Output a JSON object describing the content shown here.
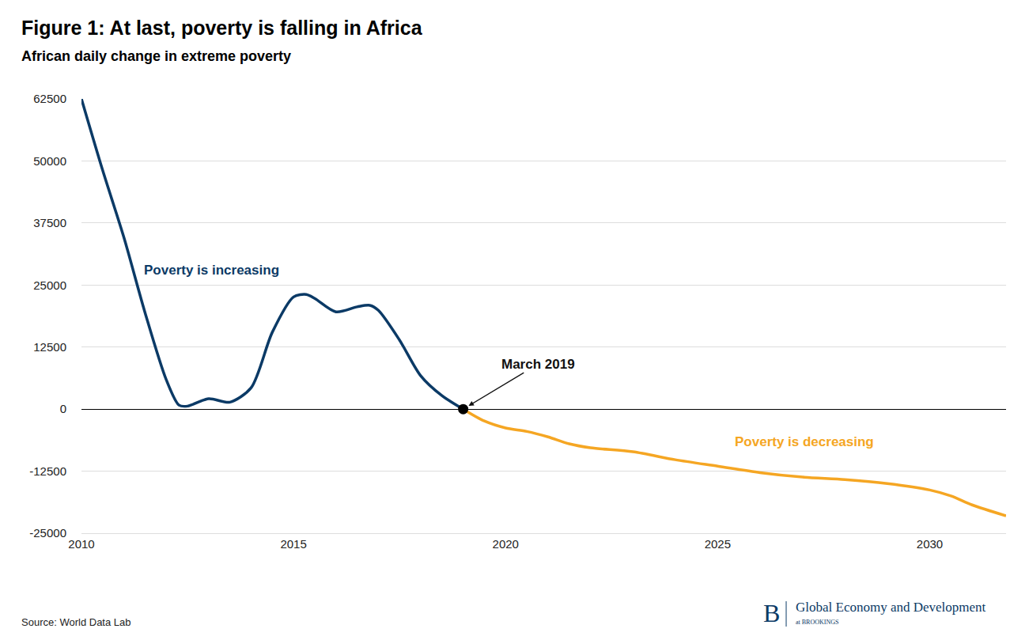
{
  "chart_data": {
    "type": "line",
    "title": "Figure 1: At last, poverty is falling in Africa",
    "subtitle": "African daily change in extreme poverty",
    "source": "Source: World Data Lab",
    "branding": {
      "letter": "B",
      "text": "Global Economy and Development",
      "subtext": "at BROOKINGS"
    },
    "xlim": [
      2010,
      2031.8
    ],
    "xticks": [
      2010,
      2015,
      2020,
      2025,
      2030
    ],
    "ylim": [
      -25000,
      62500
    ],
    "yticks": [
      -25000,
      -12500,
      0,
      12500,
      25000,
      37500,
      50000,
      62500
    ],
    "grid": true,
    "series": [
      {
        "name": "Poverty is increasing",
        "color": "#0b3a66",
        "x": [
          2010,
          2010.5,
          2011,
          2011.5,
          2012,
          2012.3,
          2012.5,
          2013,
          2013.5,
          2014,
          2014.5,
          2015,
          2015.3,
          2015.5,
          2016,
          2016.5,
          2016.8,
          2017,
          2017.5,
          2018,
          2018.5,
          2019
        ],
        "values": [
          62500,
          48100,
          34600,
          19400,
          5900,
          800,
          600,
          2100,
          1400,
          4300,
          15500,
          22600,
          23100,
          22300,
          19600,
          20600,
          20900,
          19900,
          13900,
          6700,
          2700,
          0
        ]
      },
      {
        "name": "Poverty is decreasing",
        "color": "#f5a623",
        "x": [
          2019,
          2019.5,
          2020,
          2020.5,
          2021,
          2021.5,
          2022,
          2023,
          2024,
          2025,
          2026,
          2027,
          2028,
          2029,
          2030,
          2030.5,
          2031,
          2031.8
        ],
        "values": [
          0,
          -2400,
          -3800,
          -4500,
          -5600,
          -7000,
          -7800,
          -8600,
          -10200,
          -11500,
          -12800,
          -13700,
          -14200,
          -15000,
          -16300,
          -17500,
          -19300,
          -21500
        ]
      }
    ],
    "annotations": [
      {
        "text": "March 2019",
        "x": 2019,
        "y": 0
      }
    ]
  }
}
